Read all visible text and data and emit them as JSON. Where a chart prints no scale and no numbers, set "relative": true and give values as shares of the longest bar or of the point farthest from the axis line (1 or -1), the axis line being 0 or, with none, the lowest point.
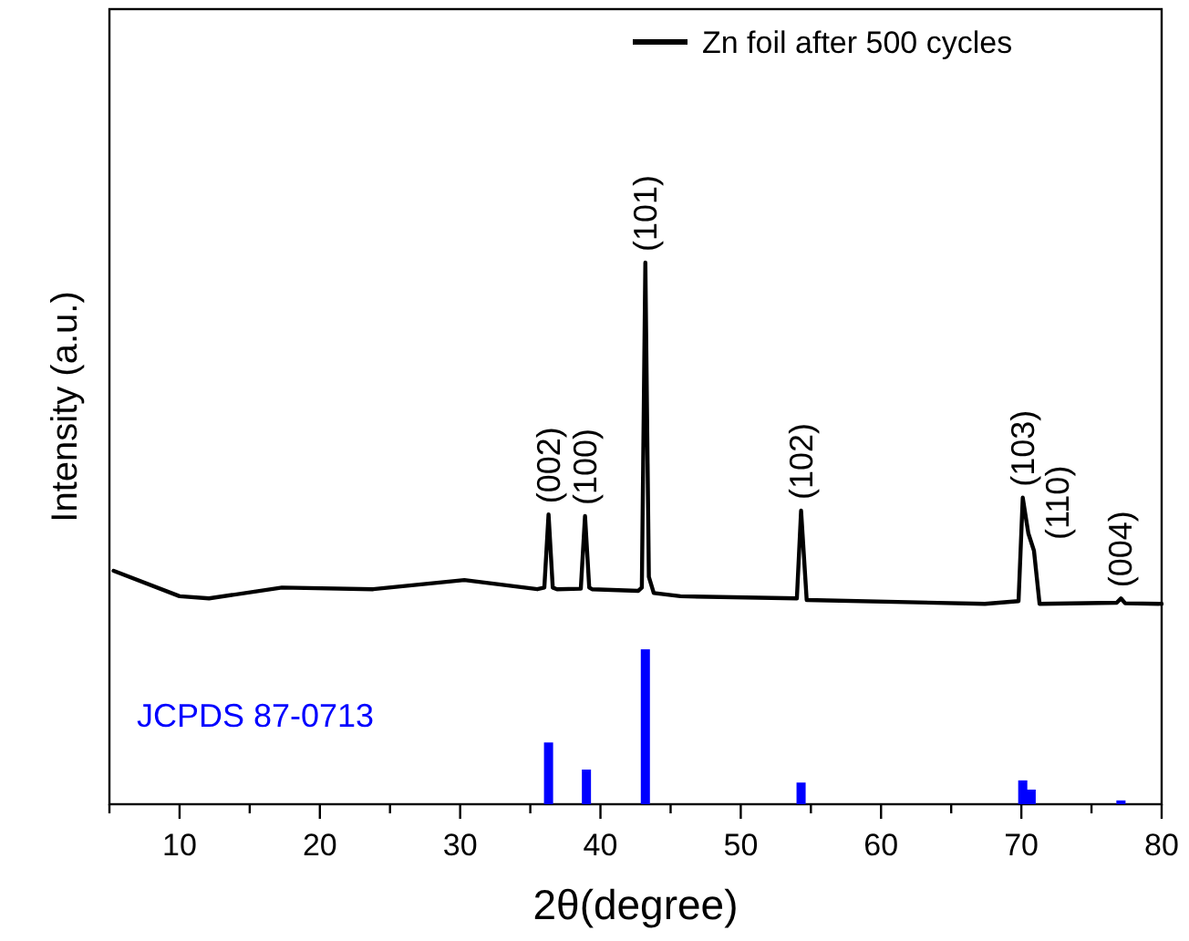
{
  "chart_data": {
    "type": "line",
    "relative": true,
    "xlabel": "2θ(degree)",
    "ylabel": "Intensity (a.u.)",
    "xlim": [
      5,
      80
    ],
    "xticks": [
      {
        "value": 5,
        "label": null
      },
      10,
      {
        "value": 15,
        "label": null
      },
      20,
      {
        "value": 25,
        "label": null
      },
      30,
      {
        "value": 35,
        "label": null
      },
      40,
      {
        "value": 45,
        "label": null
      },
      50,
      {
        "value": 55,
        "label": null
      },
      60,
      {
        "value": 65,
        "label": null
      },
      70,
      {
        "value": 75,
        "label": null
      },
      80
    ],
    "legend": "top right",
    "grid": false,
    "marker": "none",
    "line_style": "solid",
    "tick_labels": "x",
    "series": [
      {
        "name": "Zn foil after 500 cycles",
        "color": "#000000",
        "x": [
          5.3,
          10,
          12.1,
          17.3,
          23.8,
          30.3,
          35.5,
          36,
          36.3,
          36.6,
          36.9,
          38.6,
          38.9,
          39.2,
          39.4,
          42.7,
          42.95,
          43.2,
          43.45,
          43.8,
          45.7,
          54,
          54.3,
          54.7,
          67.4,
          69.8,
          70.1,
          70.5,
          70.9,
          71.3,
          76.8,
          77.1,
          77.4,
          80
        ],
        "values": [
          0.431,
          0.384,
          0.38,
          0.4,
          0.397,
          0.414,
          0.397,
          0.4,
          0.535,
          0.4,
          0.397,
          0.398,
          0.532,
          0.4,
          0.397,
          0.394,
          0.4,
          1.0,
          0.42,
          0.39,
          0.384,
          0.38,
          0.542,
          0.377,
          0.37,
          0.375,
          0.566,
          0.5,
          0.468,
          0.37,
          0.372,
          0.38,
          0.371,
          0.37
        ]
      },
      {
        "name": "JCPDS 87-0713",
        "type": "bar",
        "color": "#0000ff",
        "x": [
          36.3,
          39.0,
          43.2,
          54.3,
          70.1,
          70.7,
          77.1
        ],
        "values": [
          0.114,
          0.064,
          0.286,
          0.04,
          0.044,
          0.027,
          0.007
        ]
      }
    ],
    "annotations": [
      {
        "text": "(002)",
        "x": 36.3,
        "y": 0.535
      },
      {
        "text": "(100)",
        "x": 38.9,
        "y": 0.532
      },
      {
        "text": "(101)",
        "x": 43.2,
        "y": 1.0
      },
      {
        "text": "(102)",
        "x": 54.3,
        "y": 0.542
      },
      {
        "text": "(103)",
        "x": 70.1,
        "y": 0.566
      },
      {
        "text": "(110)",
        "x": 70.9,
        "y": 0.468
      },
      {
        "text": "(004)",
        "x": 77.1,
        "y": 0.38
      }
    ]
  }
}
